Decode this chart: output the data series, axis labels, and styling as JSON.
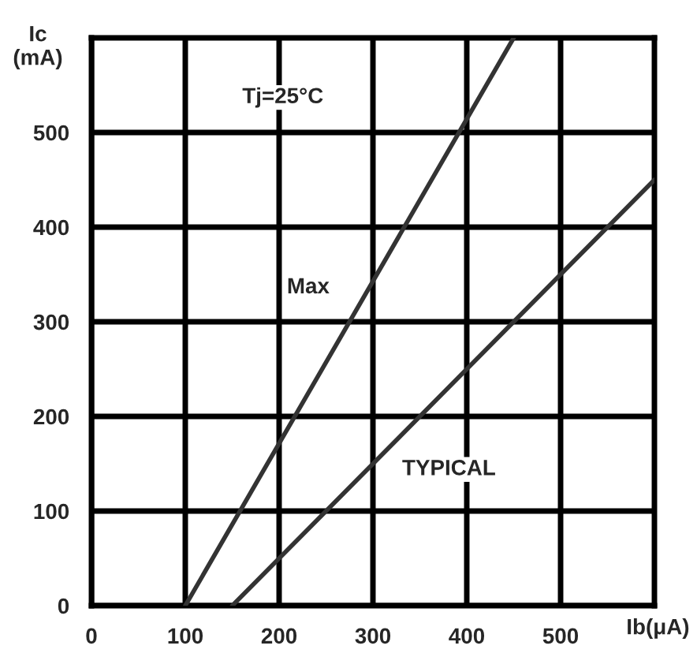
{
  "chart_data": {
    "type": "line",
    "xlabel": "Ib(μA)",
    "ylabel": "Ic\n(mA)",
    "xlim": [
      0,
      600
    ],
    "ylim": [
      0,
      600
    ],
    "xticks": [
      0,
      100,
      200,
      300,
      400,
      500
    ],
    "yticks": [
      0,
      100,
      200,
      300,
      400,
      500
    ],
    "grid": true,
    "series": [
      {
        "color": "#333333",
        "x": [
          100,
          450
        ],
        "values": [
          0,
          600
        ]
      },
      {
        "color": "#333333",
        "x": [
          150,
          600
        ],
        "values": [
          0,
          450
        ]
      }
    ],
    "annotations": [
      "Tj=25°C",
      "Max",
      "TYPICAL"
    ]
  }
}
